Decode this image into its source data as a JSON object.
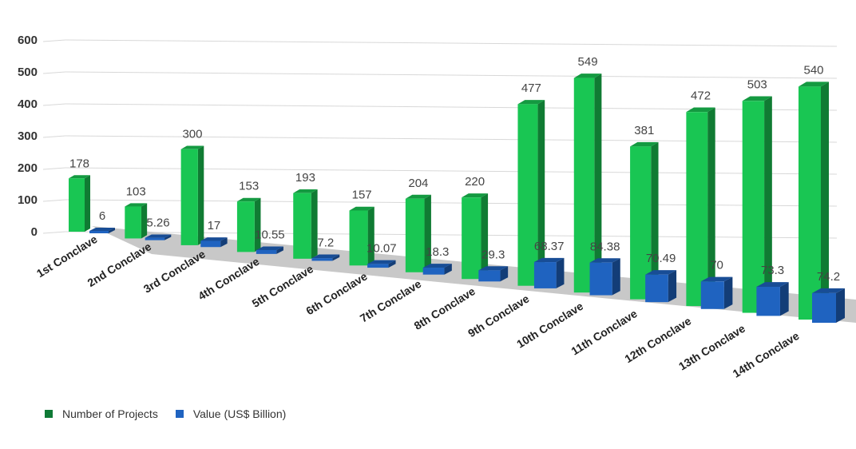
{
  "chart_data": {
    "type": "bar",
    "categories": [
      "1st Conclave",
      "2nd Conclave",
      "3rd Conclave",
      "4th Conclave",
      "5th Conclave",
      "6th Conclave",
      "7th Conclave",
      "8th Conclave",
      "9th Conclave",
      "10th Conclave",
      "11th Conclave",
      "12th Conclave",
      "13th Conclave",
      "14th Conclave"
    ],
    "series": [
      {
        "name": "Number of Projects",
        "color": "#19c653",
        "values": [
          178,
          103,
          300,
          153,
          193,
          157,
          204,
          220,
          477,
          549,
          381,
          472,
          503,
          540
        ],
        "labels": [
          "178",
          "103",
          "300",
          "153",
          "193",
          "157",
          "204",
          "220",
          "477",
          "549",
          "381",
          "472",
          "503",
          "540"
        ]
      },
      {
        "name": "Value (US$ Billion)",
        "color": "#1f63c0",
        "values": [
          6,
          5.26,
          17,
          10.55,
          7.2,
          10.07,
          18.3,
          29.3,
          68.37,
          84.38,
          70.49,
          70,
          73.3,
          74.2
        ],
        "labels": [
          "6",
          "5.26",
          "17",
          "10.55",
          "7.2",
          "10.07",
          "18.3",
          "29.3",
          "68.37",
          "84.38",
          "70.49",
          "70",
          "73.3",
          "74.2"
        ]
      }
    ],
    "yticks": [
      "0",
      "100",
      "200",
      "300",
      "400",
      "500",
      "600"
    ],
    "ylim": [
      0,
      600
    ],
    "grid": true,
    "legend_position": "bottom-left"
  }
}
